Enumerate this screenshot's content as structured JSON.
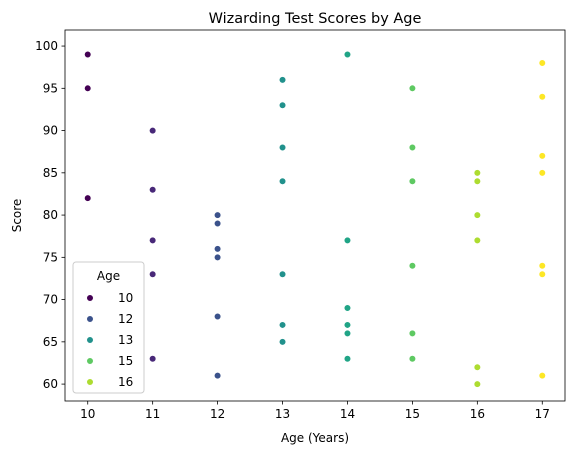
{
  "chart_data": {
    "type": "scatter",
    "title": "Wizarding Test Scores by Age",
    "xlabel": "Age (Years)",
    "ylabel": "Score",
    "xlim": [
      9.65,
      17.35
    ],
    "ylim": [
      58,
      101.9
    ],
    "xticks": [
      10,
      11,
      12,
      13,
      14,
      15,
      16,
      17
    ],
    "yticks": [
      60,
      65,
      70,
      75,
      80,
      85,
      90,
      95,
      100
    ],
    "grid": false,
    "legend": {
      "title": "Age",
      "placement": "lower-left",
      "entries": [
        {
          "label": "10",
          "color": "#440154"
        },
        {
          "label": "12",
          "color": "#3b528b"
        },
        {
          "label": "13",
          "color": "#21918c"
        },
        {
          "label": "15",
          "color": "#5ec962"
        },
        {
          "label": "16",
          "color": "#addc30"
        }
      ]
    },
    "hue_colors": {
      "10": "#440154",
      "11": "#482878",
      "12": "#3b528b",
      "13": "#21918c",
      "14": "#20a486",
      "15": "#5ec962",
      "16": "#addc30",
      "17": "#fde725"
    },
    "points": [
      {
        "x": 10,
        "y": 99
      },
      {
        "x": 10,
        "y": 95
      },
      {
        "x": 10,
        "y": 82
      },
      {
        "x": 11,
        "y": 90
      },
      {
        "x": 11,
        "y": 83
      },
      {
        "x": 11,
        "y": 77
      },
      {
        "x": 11,
        "y": 73
      },
      {
        "x": 11,
        "y": 63
      },
      {
        "x": 12,
        "y": 80
      },
      {
        "x": 12,
        "y": 79
      },
      {
        "x": 12,
        "y": 76
      },
      {
        "x": 12,
        "y": 75
      },
      {
        "x": 12,
        "y": 68
      },
      {
        "x": 12,
        "y": 61
      },
      {
        "x": 13,
        "y": 96
      },
      {
        "x": 13,
        "y": 93
      },
      {
        "x": 13,
        "y": 88
      },
      {
        "x": 13,
        "y": 84
      },
      {
        "x": 13,
        "y": 73
      },
      {
        "x": 13,
        "y": 67
      },
      {
        "x": 13,
        "y": 65
      },
      {
        "x": 14,
        "y": 99
      },
      {
        "x": 14,
        "y": 77
      },
      {
        "x": 14,
        "y": 69
      },
      {
        "x": 14,
        "y": 67
      },
      {
        "x": 14,
        "y": 66
      },
      {
        "x": 14,
        "y": 63
      },
      {
        "x": 15,
        "y": 95
      },
      {
        "x": 15,
        "y": 88
      },
      {
        "x": 15,
        "y": 84
      },
      {
        "x": 15,
        "y": 74
      },
      {
        "x": 15,
        "y": 66
      },
      {
        "x": 15,
        "y": 63
      },
      {
        "x": 16,
        "y": 85
      },
      {
        "x": 16,
        "y": 84
      },
      {
        "x": 16,
        "y": 80
      },
      {
        "x": 16,
        "y": 77
      },
      {
        "x": 16,
        "y": 62
      },
      {
        "x": 16,
        "y": 60
      },
      {
        "x": 17,
        "y": 98
      },
      {
        "x": 17,
        "y": 94
      },
      {
        "x": 17,
        "y": 87
      },
      {
        "x": 17,
        "y": 85
      },
      {
        "x": 17,
        "y": 74
      },
      {
        "x": 17,
        "y": 73
      },
      {
        "x": 17,
        "y": 61
      }
    ]
  }
}
